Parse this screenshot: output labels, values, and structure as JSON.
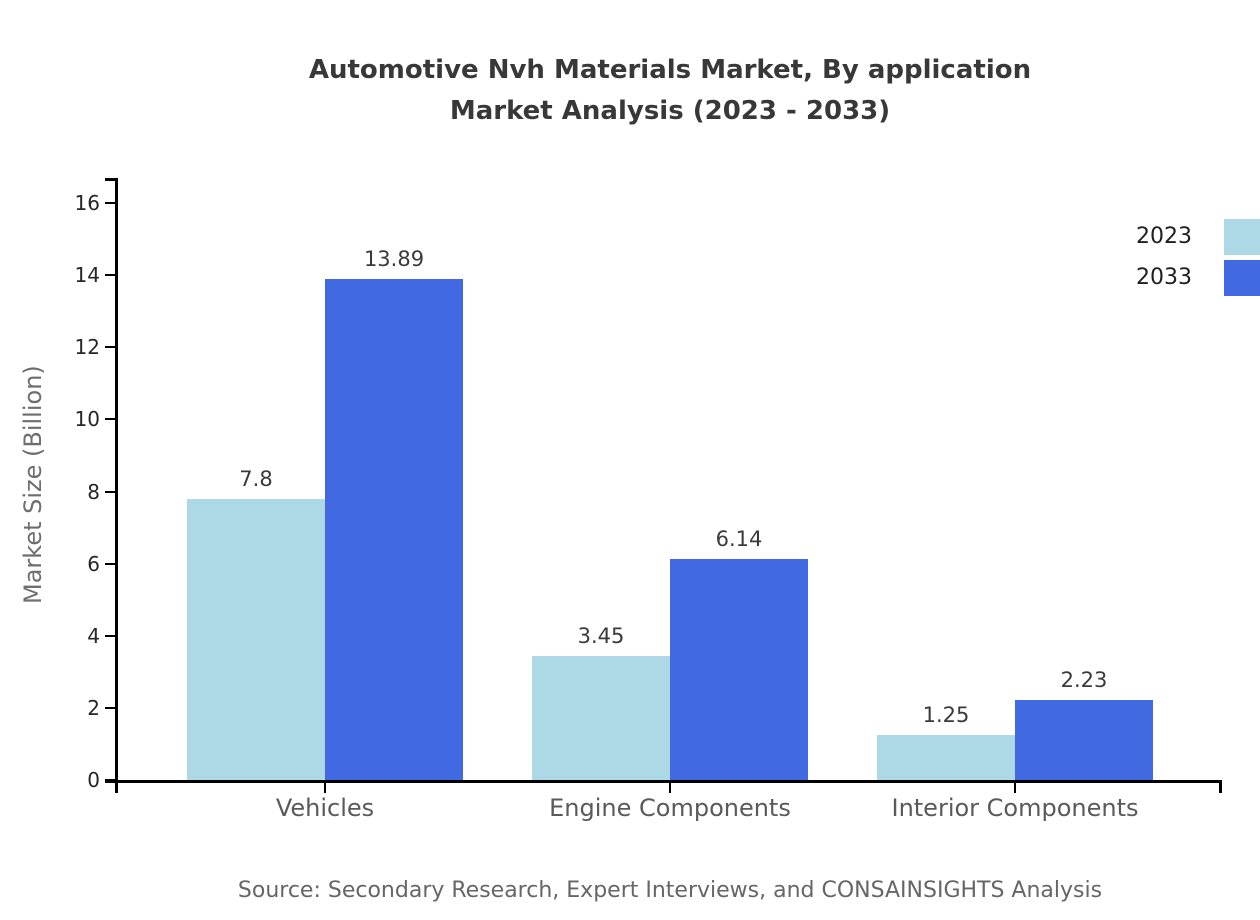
{
  "title": {
    "line1": "Automotive Nvh Materials Market, By application",
    "line2": "Market Analysis (2023 - 2033)"
  },
  "source": "Source: Secondary Research, Expert Interviews, and CONSAINSIGHTS Analysis",
  "colors": {
    "series_2023": "#ADD8E6",
    "series_2033": "#4169E1",
    "axis": "#000000",
    "title_text": "#383838",
    "muted_text": "#666666"
  },
  "chart_data": {
    "type": "bar",
    "title": "Automotive Nvh Materials Market, By application Market Analysis (2023 - 2033)",
    "categories": [
      "Vehicles",
      "Engine Components",
      "Interior Components"
    ],
    "series": [
      {
        "name": "2023",
        "color": "#ADD8E6",
        "values": [
          7.8,
          3.45,
          1.25
        ]
      },
      {
        "name": "2033",
        "color": "#4169E1",
        "values": [
          13.89,
          6.14,
          2.23
        ]
      }
    ],
    "xlabel": "",
    "ylabel": "Market Size (Billion)",
    "ylim": [
      0,
      16
    ],
    "yticks": [
      0,
      2,
      4,
      6,
      8,
      10,
      12,
      14,
      16
    ],
    "grid": false,
    "legend_position": "top-right",
    "bar_value_labels": true
  }
}
